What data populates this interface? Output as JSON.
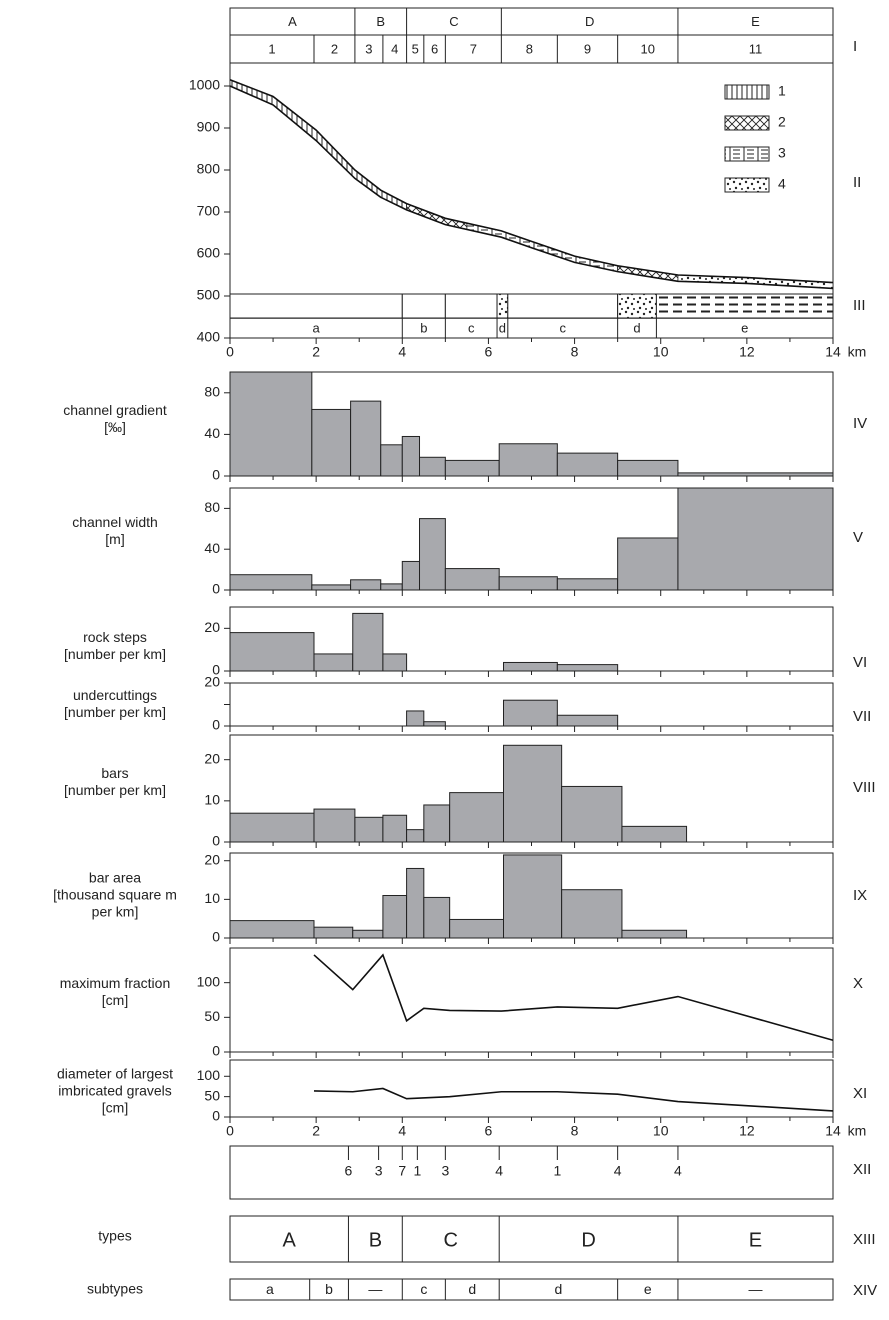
{
  "chart_data": {
    "type": "bar",
    "x_unit": "km",
    "x_range": [
      0,
      14
    ],
    "x_ticks": [
      0,
      2,
      4,
      6,
      8,
      10,
      12,
      14
    ],
    "row_I": {
      "roman": "I",
      "groups": [
        {
          "label": "A",
          "start": 0,
          "end": 2.9
        },
        {
          "label": "B",
          "start": 2.9,
          "end": 4.1
        },
        {
          "label": "C",
          "start": 4.1,
          "end": 6.3
        },
        {
          "label": "D",
          "start": 6.3,
          "end": 10.4
        },
        {
          "label": "E",
          "start": 10.4,
          "end": 14
        }
      ],
      "sections": [
        {
          "label": "1",
          "start": 0,
          "end": 1.95
        },
        {
          "label": "2",
          "start": 1.95,
          "end": 2.9
        },
        {
          "label": "3",
          "start": 2.9,
          "end": 3.55
        },
        {
          "label": "4",
          "start": 3.55,
          "end": 4.1
        },
        {
          "label": "5",
          "start": 4.1,
          "end": 4.5
        },
        {
          "label": "6",
          "start": 4.5,
          "end": 5.0
        },
        {
          "label": "7",
          "start": 5.0,
          "end": 6.3
        },
        {
          "label": "8",
          "start": 6.3,
          "end": 7.6
        },
        {
          "label": "9",
          "start": 7.6,
          "end": 9.0
        },
        {
          "label": "10",
          "start": 9.0,
          "end": 10.4
        },
        {
          "label": "11",
          "start": 10.4,
          "end": 14
        }
      ]
    },
    "profile": {
      "roman": "II",
      "y_range": [
        400,
        1000
      ],
      "y_ticks": [
        400,
        500,
        600,
        700,
        800,
        900,
        1000
      ],
      "bed": [
        [
          0,
          1000
        ],
        [
          1,
          955
        ],
        [
          2,
          870
        ],
        [
          2.9,
          780
        ],
        [
          3.5,
          735
        ],
        [
          4.1,
          705
        ],
        [
          5,
          670
        ],
        [
          6.3,
          640
        ],
        [
          7,
          615
        ],
        [
          8,
          580
        ],
        [
          9,
          558
        ],
        [
          10.4,
          535
        ],
        [
          12,
          530
        ],
        [
          14,
          518
        ]
      ],
      "surface": [
        [
          0,
          1015
        ],
        [
          1,
          975
        ],
        [
          2,
          895
        ],
        [
          2.9,
          800
        ],
        [
          3.5,
          752
        ],
        [
          4.1,
          720
        ],
        [
          5,
          685
        ],
        [
          6.3,
          655
        ],
        [
          7,
          630
        ],
        [
          8,
          595
        ],
        [
          9,
          572
        ],
        [
          10.4,
          550
        ],
        [
          12,
          544
        ],
        [
          14,
          532
        ]
      ],
      "fills": [
        {
          "start": 0,
          "end": 4.1,
          "pattern": "1"
        },
        {
          "start": 4.1,
          "end": 5.5,
          "pattern": "2"
        },
        {
          "start": 5.5,
          "end": 9.0,
          "pattern": "3"
        },
        {
          "start": 9.0,
          "end": 10.4,
          "pattern": "2"
        },
        {
          "start": 10.4,
          "end": 14,
          "pattern": "4"
        }
      ],
      "legend": [
        {
          "pattern": "1",
          "label": "1"
        },
        {
          "pattern": "2",
          "label": "2"
        },
        {
          "pattern": "3",
          "label": "3"
        },
        {
          "pattern": "4",
          "label": "4"
        }
      ]
    },
    "row_III": {
      "roman": "III",
      "upper_cells": [
        {
          "start": 0,
          "end": 4.0,
          "pattern": "none"
        },
        {
          "start": 4.0,
          "end": 5.0,
          "pattern": "none"
        },
        {
          "start": 5.0,
          "end": 6.2,
          "pattern": "none"
        },
        {
          "start": 6.2,
          "end": 6.45,
          "pattern": "4"
        },
        {
          "start": 6.45,
          "end": 9.0,
          "pattern": "none"
        },
        {
          "start": 9.0,
          "end": 9.9,
          "pattern": "4"
        },
        {
          "start": 9.9,
          "end": 14,
          "pattern": "dash"
        }
      ],
      "lower_cells": [
        {
          "label": "a",
          "start": 0,
          "end": 4.0
        },
        {
          "label": "b",
          "start": 4.0,
          "end": 5.0
        },
        {
          "label": "c",
          "start": 5.0,
          "end": 6.2
        },
        {
          "label": "d",
          "start": 6.2,
          "end": 6.45
        },
        {
          "label": "c",
          "start": 6.45,
          "end": 9.0
        },
        {
          "label": "d",
          "start": 9.0,
          "end": 9.9
        },
        {
          "label": "e",
          "start": 9.9,
          "end": 14
        }
      ]
    },
    "panels": [
      {
        "roman": "IV",
        "label": [
          "channel gradient",
          "[‰]"
        ],
        "y_max": 100,
        "y_ticks": [
          0,
          40,
          80
        ],
        "bars": [
          {
            "start": 0,
            "end": 1.9,
            "value": 100
          },
          {
            "start": 1.9,
            "end": 2.8,
            "value": 64
          },
          {
            "start": 2.8,
            "end": 3.5,
            "value": 72
          },
          {
            "start": 3.5,
            "end": 4.0,
            "value": 30
          },
          {
            "start": 4.0,
            "end": 4.4,
            "value": 38
          },
          {
            "start": 4.4,
            "end": 5.0,
            "value": 18
          },
          {
            "start": 5.0,
            "end": 6.25,
            "value": 15
          },
          {
            "start": 6.25,
            "end": 7.6,
            "value": 31
          },
          {
            "start": 7.6,
            "end": 9.0,
            "value": 22
          },
          {
            "start": 9.0,
            "end": 10.4,
            "value": 15
          },
          {
            "start": 10.4,
            "end": 14,
            "value": 3
          }
        ]
      },
      {
        "roman": "V",
        "label": [
          "channel width",
          "[m]"
        ],
        "y_max": 100,
        "y_ticks": [
          0,
          40,
          80
        ],
        "bars": [
          {
            "start": 0,
            "end": 1.9,
            "value": 15
          },
          {
            "start": 1.9,
            "end": 2.8,
            "value": 5
          },
          {
            "start": 2.8,
            "end": 3.5,
            "value": 10
          },
          {
            "start": 3.5,
            "end": 4.0,
            "value": 6
          },
          {
            "start": 4.0,
            "end": 4.4,
            "value": 28
          },
          {
            "start": 4.4,
            "end": 5.0,
            "value": 70
          },
          {
            "start": 5.0,
            "end": 6.25,
            "value": 21
          },
          {
            "start": 6.25,
            "end": 7.6,
            "value": 13
          },
          {
            "start": 7.6,
            "end": 9.0,
            "value": 11
          },
          {
            "start": 9.0,
            "end": 10.4,
            "value": 51
          },
          {
            "start": 10.4,
            "end": 14,
            "value": 100
          }
        ]
      },
      {
        "roman": "VI",
        "label": [
          "rock steps",
          "[number per km]"
        ],
        "y_max": 30,
        "y_ticks": [
          0,
          20
        ],
        "bars": [
          {
            "start": 0,
            "end": 1.95,
            "value": 18
          },
          {
            "start": 1.95,
            "end": 2.85,
            "value": 8
          },
          {
            "start": 2.85,
            "end": 3.55,
            "value": 27
          },
          {
            "start": 3.55,
            "end": 4.1,
            "value": 8
          },
          {
            "start": 6.35,
            "end": 7.6,
            "value": 4
          },
          {
            "start": 7.6,
            "end": 9.0,
            "value": 3
          }
        ]
      },
      {
        "roman": "VII",
        "label": [
          "undercuttings",
          "[number per km]"
        ],
        "y_max": 20,
        "y_ticks": [
          0,
          10,
          20
        ],
        "y_tick_labels": [
          "0",
          "",
          "20"
        ],
        "bars": [
          {
            "start": 4.1,
            "end": 4.5,
            "value": 7
          },
          {
            "start": 4.5,
            "end": 5.0,
            "value": 2
          },
          {
            "start": 6.35,
            "end": 7.6,
            "value": 12
          },
          {
            "start": 7.6,
            "end": 9.0,
            "value": 5
          }
        ]
      },
      {
        "roman": "VIII",
        "label": [
          "bars",
          "[number per km]"
        ],
        "y_max": 26,
        "y_ticks": [
          0,
          10,
          20
        ],
        "bars": [
          {
            "start": 0,
            "end": 1.95,
            "value": 7
          },
          {
            "start": 1.95,
            "end": 2.9,
            "value": 8
          },
          {
            "start": 2.9,
            "end": 3.55,
            "value": 6
          },
          {
            "start": 3.55,
            "end": 4.1,
            "value": 6.5
          },
          {
            "start": 4.1,
            "end": 4.5,
            "value": 3
          },
          {
            "start": 4.5,
            "end": 5.1,
            "value": 9
          },
          {
            "start": 5.1,
            "end": 6.35,
            "value": 12
          },
          {
            "start": 6.35,
            "end": 7.7,
            "value": 23.5
          },
          {
            "start": 7.7,
            "end": 9.1,
            "value": 13.5
          },
          {
            "start": 9.1,
            "end": 10.6,
            "value": 3.8
          }
        ]
      },
      {
        "roman": "IX",
        "label": [
          "bar area",
          "[thousand square m",
          "per km]"
        ],
        "y_max": 22,
        "y_ticks": [
          0,
          10,
          20
        ],
        "bars": [
          {
            "start": 0,
            "end": 1.95,
            "value": 4.5
          },
          {
            "start": 1.95,
            "end": 2.85,
            "value": 2.8
          },
          {
            "start": 2.85,
            "end": 3.55,
            "value": 2
          },
          {
            "start": 3.55,
            "end": 4.1,
            "value": 11
          },
          {
            "start": 4.1,
            "end": 4.5,
            "value": 18
          },
          {
            "start": 4.5,
            "end": 5.1,
            "value": 10.5
          },
          {
            "start": 5.1,
            "end": 6.35,
            "value": 4.8
          },
          {
            "start": 6.35,
            "end": 7.7,
            "value": 21.5
          },
          {
            "start": 7.7,
            "end": 9.1,
            "value": 12.5
          },
          {
            "start": 9.1,
            "end": 10.6,
            "value": 2
          }
        ]
      }
    ],
    "lines": [
      {
        "roman": "X",
        "label": [
          "maximum fraction",
          "[cm]"
        ],
        "y_max": 150,
        "y_ticks": [
          0,
          50,
          100
        ],
        "points": [
          [
            1.95,
            140
          ],
          [
            2.85,
            90
          ],
          [
            3.55,
            140
          ],
          [
            4.1,
            45
          ],
          [
            4.5,
            63
          ],
          [
            5.1,
            60
          ],
          [
            6.3,
            59
          ],
          [
            7.6,
            65
          ],
          [
            9.0,
            63
          ],
          [
            10.4,
            80
          ],
          [
            14,
            17
          ]
        ]
      },
      {
        "roman": "XI",
        "label": [
          "diameter of largest",
          "imbricated gravels",
          "[cm]"
        ],
        "y_max": 140,
        "y_ticks": [
          0,
          50,
          100
        ],
        "points": [
          [
            1.95,
            64
          ],
          [
            2.85,
            62
          ],
          [
            3.55,
            70
          ],
          [
            4.1,
            45
          ],
          [
            5.1,
            50
          ],
          [
            6.3,
            62
          ],
          [
            7.6,
            62
          ],
          [
            9.0,
            56
          ],
          [
            10.4,
            38
          ],
          [
            14,
            15
          ]
        ]
      }
    ],
    "row_XII": {
      "roman": "XII",
      "marks": [
        {
          "x": 2.75,
          "label": "6"
        },
        {
          "x": 3.45,
          "label": "3"
        },
        {
          "x": 4.0,
          "label": "7"
        },
        {
          "x": 4.35,
          "label": "1"
        },
        {
          "x": 5.0,
          "label": "3"
        },
        {
          "x": 6.25,
          "label": "4"
        },
        {
          "x": 7.6,
          "label": "1"
        },
        {
          "x": 9.0,
          "label": "4"
        },
        {
          "x": 10.4,
          "label": "4"
        }
      ]
    },
    "row_XIII": {
      "roman": "XIII",
      "label": "types",
      "cells": [
        {
          "label": "A",
          "start": 0,
          "end": 2.75
        },
        {
          "label": "B",
          "start": 2.75,
          "end": 4.0
        },
        {
          "label": "C",
          "start": 4.0,
          "end": 6.25
        },
        {
          "label": "D",
          "start": 6.25,
          "end": 10.4
        },
        {
          "label": "E",
          "start": 10.4,
          "end": 14
        }
      ]
    },
    "row_XIV": {
      "roman": "XIV",
      "label": "subtypes",
      "cells": [
        {
          "label": "a",
          "start": 0,
          "end": 1.85
        },
        {
          "label": "b",
          "start": 1.85,
          "end": 2.75
        },
        {
          "label": "—",
          "start": 2.75,
          "end": 4.0
        },
        {
          "label": "c",
          "start": 4.0,
          "end": 5.0
        },
        {
          "label": "d",
          "start": 5.0,
          "end": 6.25
        },
        {
          "label": "d",
          "start": 6.25,
          "end": 9.0
        },
        {
          "label": "e",
          "start": 9.0,
          "end": 10.4
        },
        {
          "label": "—",
          "start": 10.4,
          "end": 14
        }
      ]
    }
  }
}
